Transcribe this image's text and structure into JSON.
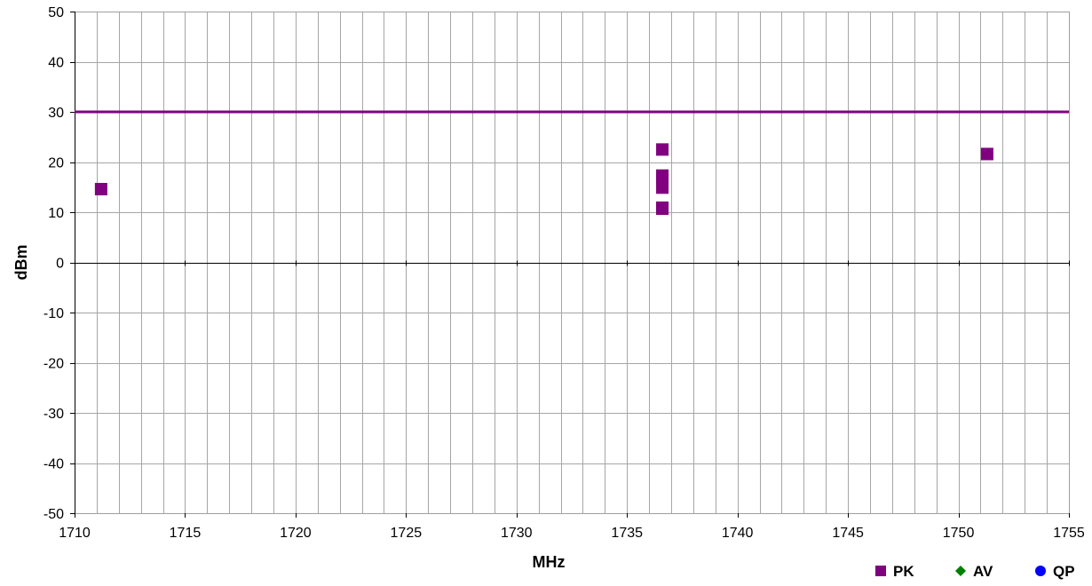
{
  "chart_data": {
    "type": "scatter",
    "xlabel": "MHz",
    "ylabel": "dBm",
    "xlim": [
      1710,
      1755
    ],
    "ylim": [
      -50,
      50
    ],
    "x_major_step": 5,
    "x_minor_step": 1,
    "y_step": 10,
    "grid": true,
    "legend_position": "bottom-right",
    "limit_line": {
      "y": 30,
      "color": "#800080"
    },
    "series": [
      {
        "name": "PK",
        "marker": "square",
        "color": "#800080",
        "points": [
          {
            "x": 1711.2,
            "y": 14.6
          },
          {
            "x": 1736.6,
            "y": 22.5
          },
          {
            "x": 1736.6,
            "y": 17.3
          },
          {
            "x": 1736.6,
            "y": 16.6
          },
          {
            "x": 1736.6,
            "y": 14.9
          },
          {
            "x": 1736.6,
            "y": 10.9
          },
          {
            "x": 1736.6,
            "y": 10.7
          },
          {
            "x": 1751.3,
            "y": 21.6
          }
        ]
      },
      {
        "name": "AV",
        "marker": "diamond",
        "color": "#008000",
        "points": []
      },
      {
        "name": "QP",
        "marker": "circle",
        "color": "#0000ff",
        "points": []
      }
    ]
  }
}
